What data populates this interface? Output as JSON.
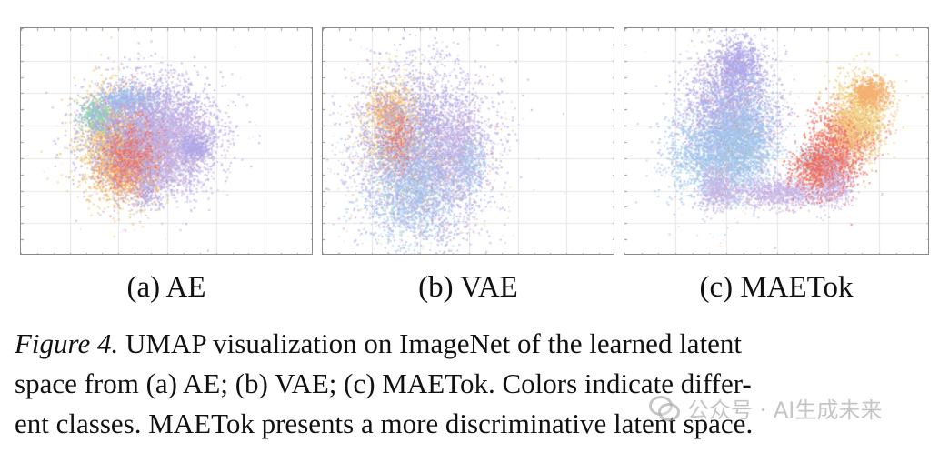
{
  "figure": {
    "panels": [
      {
        "id": "a",
        "label": "(a)  AE"
      },
      {
        "id": "b",
        "label": "(b) VAE"
      },
      {
        "id": "c",
        "label": "(c) MAETok"
      }
    ],
    "caption_lines": [
      {
        "prefix": "Figure 4.",
        "text": " UMAP visualization on ImageNet of the learned latent"
      },
      {
        "text": "space from (a) AE; (b) VAE; (c) MAETok. Colors indicate differ-"
      },
      {
        "text": "ent classes. MAETok presents a more discriminative latent space."
      }
    ]
  },
  "watermark": {
    "text": "公众号 · AI生成未来"
  },
  "palette": [
    "#b0a8e8",
    "#9ec8ec",
    "#f0d080",
    "#f06c5c",
    "#8ed0c0",
    "#f4b070",
    "#c8b4e4"
  ]
}
